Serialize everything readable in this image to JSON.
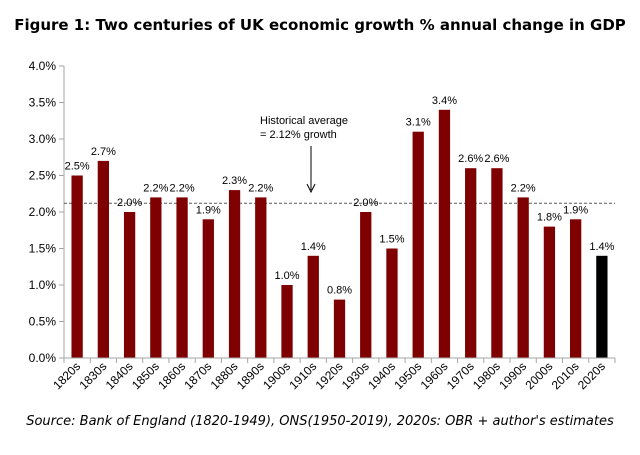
{
  "chart_data": {
    "type": "bar",
    "title": "Figure 1: Two centuries of UK economic growth % annual change in GDP",
    "categories": [
      "1820s",
      "1830s",
      "1840s",
      "1850s",
      "1860s",
      "1870s",
      "1880s",
      "1890s",
      "1900s",
      "1910s",
      "1920s",
      "1930s",
      "1940s",
      "1950s",
      "1960s",
      "1970s",
      "1980s",
      "1990s",
      "2000s",
      "2010s",
      "2020s"
    ],
    "values": [
      2.5,
      2.7,
      2.0,
      2.2,
      2.2,
      1.9,
      2.3,
      2.2,
      1.0,
      1.4,
      0.8,
      2.0,
      1.5,
      3.1,
      3.4,
      2.6,
      2.6,
      2.2,
      1.8,
      1.9,
      1.4
    ],
    "data_labels": [
      "2.5%",
      "2.7%",
      "2.0%",
      "2.2%",
      "2.2%",
      "1.9%",
      "2.3%",
      "2.2%",
      "1.0%",
      "1.4%",
      "0.8%",
      "2.0%",
      "1.5%",
      "3.1%",
      "3.4%",
      "2.6%",
      "2.6%",
      "2.2%",
      "1.8%",
      "1.9%",
      "1.4%"
    ],
    "ylim": [
      0,
      4.0
    ],
    "yticks": [
      0,
      0.5,
      1.0,
      1.5,
      2.0,
      2.5,
      3.0,
      3.5,
      4.0
    ],
    "ytick_labels": [
      "0.0%",
      "0.5%",
      "1.0%",
      "1.5%",
      "2.0%",
      "2.5%",
      "3.0%",
      "3.5%",
      "4.0%"
    ],
    "xlabel": "",
    "ylabel": "",
    "grid": false,
    "legend": "none",
    "reference_line": {
      "value": 2.12,
      "style": "dashed",
      "annotation_lines": [
        "Historical average",
        "= 2.12% growth"
      ]
    },
    "colors": {
      "bar": "#7f0000",
      "highlight_bar": "#000000",
      "highlight_category": "2020s",
      "axis": "#a6a6a6",
      "reference_line": "#595959"
    },
    "source": "Source: Bank of England (1820-1949), ONS(1950-2019), 2020s: OBR + author's estimates"
  }
}
